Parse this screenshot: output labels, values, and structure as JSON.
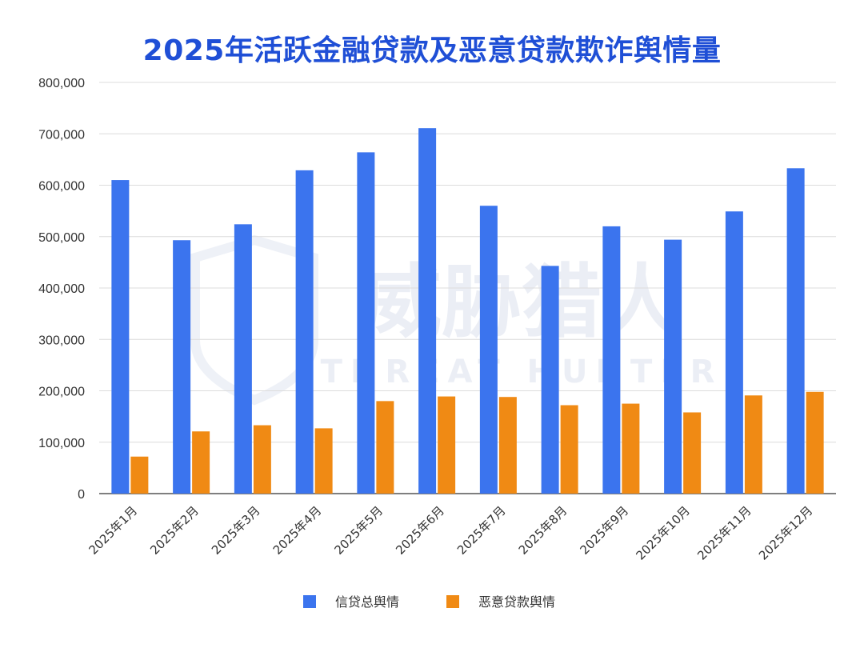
{
  "chart_data": {
    "type": "bar",
    "title": "2025年活跃金融贷款及恶意贷款欺诈舆情量",
    "categories": [
      "2025年1月",
      "2025年2月",
      "2025年3月",
      "2025年4月",
      "2025年5月",
      "2025年6月",
      "2025年7月",
      "2025年8月",
      "2025年9月",
      "2025年10月",
      "2025年11月",
      "2025年12月"
    ],
    "series": [
      {
        "name": "信贷总舆情",
        "color": "#3b74ee",
        "values": [
          610000,
          493000,
          524000,
          629000,
          664000,
          711000,
          560000,
          443000,
          520000,
          494000,
          549000,
          633000
        ]
      },
      {
        "name": "恶意贷款舆情",
        "color": "#f08a14",
        "values": [
          72000,
          121000,
          133000,
          127000,
          180000,
          189000,
          188000,
          172000,
          175000,
          158000,
          191000,
          198000
        ]
      }
    ],
    "y_ticks": [
      "0",
      "100,000",
      "200,000",
      "300,000",
      "400,000",
      "500,000",
      "600,000",
      "700,000",
      "800,000"
    ],
    "ylim": [
      0,
      800000
    ],
    "grid": true,
    "legend_position": "bottom-center"
  },
  "watermark": {
    "text_cn": "威胁猎人",
    "text_en": "THREAT HUNTER"
  }
}
